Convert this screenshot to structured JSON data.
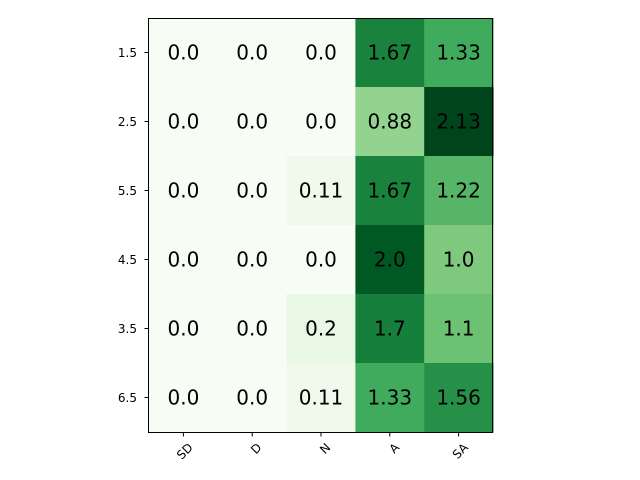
{
  "chart_data": {
    "type": "heatmap",
    "colormap": "Greens",
    "x_categories": [
      "SD",
      "D",
      "N",
      "A",
      "SA"
    ],
    "y_categories": [
      "1.5",
      "2.5",
      "5.5",
      "4.5",
      "3.5",
      "6.5"
    ],
    "values": [
      [
        0.0,
        0.0,
        0.0,
        1.67,
        1.33
      ],
      [
        0.0,
        0.0,
        0.0,
        0.88,
        2.13
      ],
      [
        0.0,
        0.0,
        0.11,
        1.67,
        1.22
      ],
      [
        0.0,
        0.0,
        0.0,
        2.0,
        1.0
      ],
      [
        0.0,
        0.0,
        0.2,
        1.7,
        1.1
      ],
      [
        0.0,
        0.0,
        0.11,
        1.33,
        1.56
      ]
    ],
    "value_labels": [
      [
        "0.0",
        "0.0",
        "0.0",
        "1.67",
        "1.33"
      ],
      [
        "0.0",
        "0.0",
        "0.0",
        "0.88",
        "2.13"
      ],
      [
        "0.0",
        "0.0",
        "0.11",
        "1.67",
        "1.22"
      ],
      [
        "0.0",
        "0.0",
        "0.0",
        "2.0",
        "1.0"
      ],
      [
        "0.0",
        "0.0",
        "0.2",
        "1.7",
        "1.1"
      ],
      [
        "0.0",
        "0.0",
        "0.11",
        "1.33",
        "1.56"
      ]
    ],
    "color_range": [
      0.0,
      2.13
    ],
    "x_tick_rotation_deg": 45,
    "grid": false,
    "colorbar": false
  }
}
